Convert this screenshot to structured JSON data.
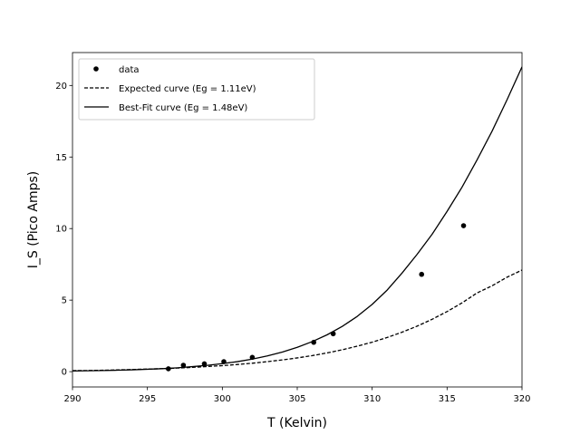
{
  "chart_data": {
    "type": "scatter",
    "title": "",
    "xlabel": "T (Kelvin)",
    "ylabel": "I_S (Pico Amps)",
    "xlim": [
      290,
      320
    ],
    "ylim": [
      -1.07,
      22.3
    ],
    "xticks": [
      290,
      295,
      300,
      305,
      310,
      315,
      320
    ],
    "yticks": [
      0,
      5,
      10,
      15,
      20
    ],
    "grid": false,
    "legend_position": "top-left",
    "series": [
      {
        "name": "data",
        "kind": "points",
        "color": "#000000",
        "x": [
          296.4,
          297.4,
          298.8,
          300.1,
          302.0,
          306.1,
          307.4,
          313.3,
          316.1
        ],
        "y": [
          0.2,
          0.45,
          0.55,
          0.7,
          1.0,
          2.05,
          2.65,
          6.8,
          10.2
        ]
      },
      {
        "name": "Expected curve (Eg = 1.11eV)",
        "kind": "line",
        "style": "dashed",
        "color": "#000000",
        "x": [
          290,
          291,
          292,
          293,
          294,
          295,
          296,
          297,
          298,
          299,
          300,
          301,
          302,
          303,
          304,
          305,
          306,
          307,
          308,
          309,
          310,
          311,
          312,
          313,
          314,
          315,
          316,
          317,
          318,
          319,
          320
        ],
        "y": [
          0.07,
          0.08,
          0.1,
          0.12,
          0.15,
          0.18,
          0.21,
          0.25,
          0.3,
          0.36,
          0.42,
          0.5,
          0.59,
          0.7,
          0.82,
          0.96,
          1.12,
          1.31,
          1.53,
          1.78,
          2.06,
          2.39,
          2.76,
          3.18,
          3.66,
          4.2,
          4.81,
          5.5,
          6.0,
          6.6,
          7.1
        ]
      },
      {
        "name": "Best-Fit curve (Eg = 1.48eV)",
        "kind": "line",
        "style": "solid",
        "color": "#000000",
        "x": [
          290,
          291,
          292,
          293,
          294,
          295,
          296,
          297,
          298,
          299,
          300,
          301,
          302,
          303,
          304,
          305,
          306,
          307,
          308,
          309,
          310,
          311,
          312,
          313,
          314,
          315,
          316,
          317,
          318,
          319,
          320
        ],
        "y": [
          0.05,
          0.06,
          0.08,
          0.1,
          0.13,
          0.17,
          0.21,
          0.27,
          0.35,
          0.44,
          0.56,
          0.7,
          0.88,
          1.1,
          1.37,
          1.7,
          2.1,
          2.58,
          3.16,
          3.86,
          4.7,
          5.7,
          6.9,
          8.2,
          9.6,
          11.2,
          12.9,
          14.8,
          16.8,
          19.0,
          21.3
        ]
      }
    ]
  }
}
